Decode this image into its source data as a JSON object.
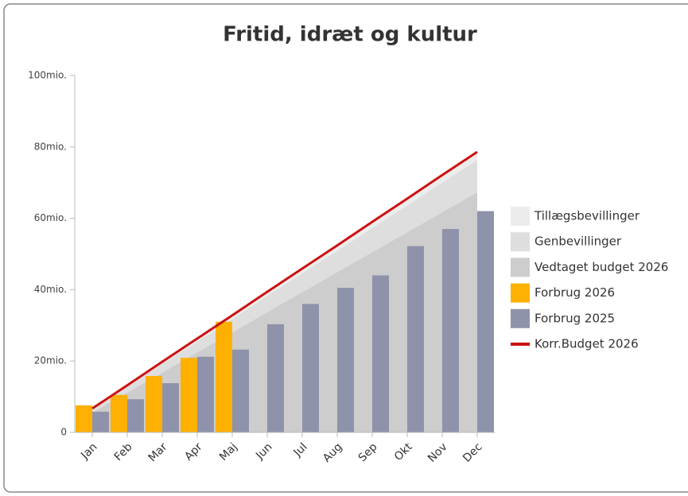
{
  "chart_data": {
    "type": "bar",
    "title": "Fritid, idræt og kultur",
    "categories": [
      "Jan",
      "Feb",
      "Mar",
      "Apr",
      "Maj",
      "Jun",
      "Jul",
      "Aug",
      "Sep",
      "Okt",
      "Nov",
      "Dec"
    ],
    "ylim": [
      0,
      100
    ],
    "yticks": [
      0,
      {
        "value": 20,
        "label": "20mio."
      },
      {
        "value": 40,
        "label": "40mio."
      },
      {
        "value": 60,
        "label": "60mio."
      },
      {
        "value": 80,
        "label": "80mio."
      },
      {
        "value": 100,
        "label": "100mio."
      }
    ],
    "series": [
      {
        "name": "Tillægsbevillinger",
        "kind": "area",
        "color": "#ececec",
        "values": [
          0.2,
          0.4,
          0.6,
          0.8,
          1.0,
          1.1,
          1.3,
          1.5,
          1.7,
          1.9,
          2.1,
          2.3
        ]
      },
      {
        "name": "Genbevillinger",
        "kind": "area",
        "color": "#dedede",
        "values": [
          0.9,
          1.6,
          2.4,
          3.1,
          3.8,
          4.6,
          5.3,
          6.0,
          6.8,
          7.5,
          8.3,
          9.0
        ]
      },
      {
        "name": "Vedtaget budget 2026",
        "kind": "area",
        "color": "#cdcdcd",
        "values": [
          5.6,
          11.2,
          16.8,
          22.4,
          28.0,
          33.7,
          39.3,
          44.9,
          50.5,
          56.1,
          61.7,
          67.3
        ]
      },
      {
        "name": "Forbrug 2026",
        "kind": "bar",
        "color": "#ffb000",
        "values": [
          7.6,
          10.5,
          15.8,
          20.9,
          31.0,
          null,
          null,
          null,
          null,
          null,
          null,
          null
        ]
      },
      {
        "name": "Forbrug 2025",
        "kind": "bar",
        "color": "#8e93ab",
        "values": [
          5.8,
          9.3,
          13.8,
          21.2,
          23.2,
          30.3,
          36.0,
          40.5,
          44.0,
          52.2,
          57.0,
          62.0
        ]
      },
      {
        "name": "Korr.Budget 2026",
        "kind": "line",
        "color": "#cc1111",
        "values": [
          6.7,
          13.2,
          19.8,
          26.3,
          32.8,
          39.4,
          45.9,
          52.4,
          59.0,
          65.5,
          72.1,
          78.6
        ]
      }
    ]
  }
}
